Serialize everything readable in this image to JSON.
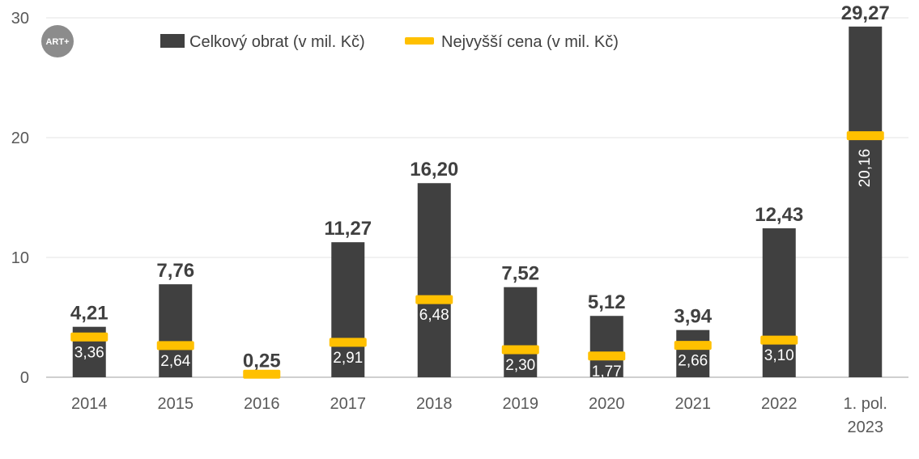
{
  "logo": {
    "text": "ART+"
  },
  "chart_data": {
    "type": "bar",
    "title": "",
    "xlabel": "",
    "ylabel": "",
    "ylim": [
      0,
      30
    ],
    "yticks": [
      0,
      10,
      20,
      30
    ],
    "grid": true,
    "legend_position": "top",
    "categories": [
      "2014",
      "2015",
      "2016",
      "2017",
      "2018",
      "2019",
      "2020",
      "2021",
      "2022",
      [
        "1. pol.",
        "2023"
      ]
    ],
    "series": [
      {
        "name": "Celkový obrat (v mil. Kč)",
        "kind": "bar",
        "color": "#404040",
        "values": [
          4.21,
          7.76,
          0.25,
          11.27,
          16.2,
          7.52,
          5.12,
          3.94,
          12.43,
          29.27
        ],
        "labels": [
          "4,21",
          "7,76",
          "0,25",
          "11,27",
          "16,20",
          "7,52",
          "5,12",
          "3,94",
          "12,43",
          "29,27"
        ]
      },
      {
        "name": "Nejvyšší cena (v mil. Kč)",
        "kind": "marker",
        "color": "#FFC000",
        "values": [
          3.36,
          2.64,
          0.25,
          2.91,
          6.48,
          2.3,
          1.77,
          2.66,
          3.1,
          20.16
        ],
        "labels": [
          "3,36",
          "2,64",
          "",
          "2,91",
          "6,48",
          "2,30",
          "1,77",
          "2,66",
          "3,10",
          "20,16"
        ]
      }
    ]
  }
}
